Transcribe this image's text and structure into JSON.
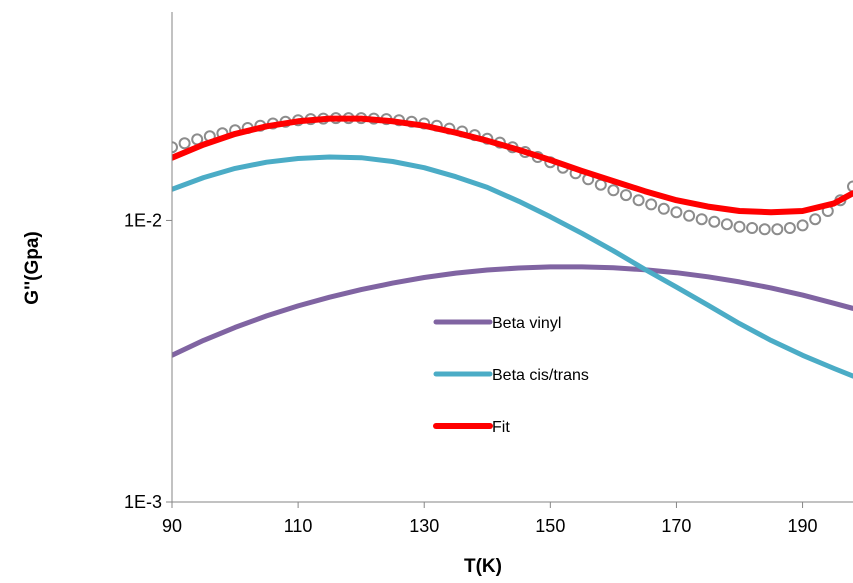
{
  "chart_data": {
    "type": "line",
    "title": "",
    "xlabel": "T(K)",
    "ylabel": "G''(Gpa)",
    "xlim": [
      90,
      198
    ],
    "ylim": [
      0.001,
      0.055
    ],
    "yscale": "log",
    "grid": false,
    "legend_position": "center",
    "x_ticks": [
      90,
      110,
      130,
      150,
      170,
      190
    ],
    "x_tick_labels": [
      "90",
      "110",
      "130",
      "150",
      "170",
      "190"
    ],
    "y_ticks": [
      0.001,
      0.01
    ],
    "y_tick_labels": [
      "1E-3",
      "1E-2"
    ],
    "scatter": {
      "color": "#8c8c8c",
      "points": [
        [
          90,
          0.0182
        ],
        [
          92,
          0.0188
        ],
        [
          94,
          0.0194
        ],
        [
          96,
          0.0199
        ],
        [
          98,
          0.0204
        ],
        [
          100,
          0.0209
        ],
        [
          102,
          0.0213
        ],
        [
          104,
          0.0217
        ],
        [
          106,
          0.0221
        ],
        [
          108,
          0.0224
        ],
        [
          110,
          0.0227
        ],
        [
          112,
          0.0229
        ],
        [
          114,
          0.023
        ],
        [
          116,
          0.0231
        ],
        [
          118,
          0.0231
        ],
        [
          120,
          0.0231
        ],
        [
          122,
          0.023
        ],
        [
          124,
          0.0229
        ],
        [
          126,
          0.0227
        ],
        [
          128,
          0.0224
        ],
        [
          130,
          0.0221
        ],
        [
          132,
          0.0217
        ],
        [
          134,
          0.0212
        ],
        [
          136,
          0.0207
        ],
        [
          138,
          0.0201
        ],
        [
          140,
          0.0195
        ],
        [
          142,
          0.0189
        ],
        [
          144,
          0.0182
        ],
        [
          146,
          0.0175
        ],
        [
          148,
          0.0168
        ],
        [
          150,
          0.0161
        ],
        [
          152,
          0.0154
        ],
        [
          154,
          0.0147
        ],
        [
          156,
          0.014
        ],
        [
          158,
          0.0134
        ],
        [
          160,
          0.0128
        ],
        [
          162,
          0.0123
        ],
        [
          164,
          0.0118
        ],
        [
          166,
          0.0114
        ],
        [
          168,
          0.011
        ],
        [
          170,
          0.0107
        ],
        [
          172,
          0.0104
        ],
        [
          174,
          0.0101
        ],
        [
          176,
          0.0099
        ],
        [
          178,
          0.0097
        ],
        [
          180,
          0.0095
        ],
        [
          182,
          0.0094
        ],
        [
          184,
          0.0093
        ],
        [
          186,
          0.0093
        ],
        [
          188,
          0.0094
        ],
        [
          190,
          0.0096
        ],
        [
          192,
          0.0101
        ],
        [
          194,
          0.0108
        ],
        [
          196,
          0.0118
        ],
        [
          198,
          0.0132
        ]
      ]
    },
    "series": [
      {
        "name": "Beta vinyl",
        "color": "#8064a2",
        "x": [
          90,
          95,
          100,
          105,
          110,
          115,
          120,
          125,
          130,
          135,
          140,
          145,
          150,
          155,
          160,
          165,
          170,
          175,
          180,
          185,
          190,
          195,
          198
        ],
        "y": [
          0.00332,
          0.00375,
          0.00417,
          0.00458,
          0.00497,
          0.00534,
          0.00568,
          0.00599,
          0.00627,
          0.0065,
          0.00667,
          0.00678,
          0.00684,
          0.00684,
          0.00679,
          0.00668,
          0.00652,
          0.00631,
          0.00605,
          0.00576,
          0.00543,
          0.00508,
          0.00487
        ]
      },
      {
        "name": "Beta cis/trans",
        "color": "#4bacc6",
        "x": [
          90,
          95,
          100,
          105,
          110,
          115,
          120,
          125,
          130,
          135,
          140,
          145,
          150,
          155,
          160,
          165,
          170,
          175,
          180,
          185,
          190,
          195,
          198
        ],
        "y": [
          0.0129,
          0.0142,
          0.0153,
          0.0161,
          0.0166,
          0.0168,
          0.0167,
          0.0162,
          0.0154,
          0.0143,
          0.0131,
          0.0117,
          0.0103,
          0.009,
          0.0078,
          0.0067,
          0.0058,
          0.005,
          0.0043,
          0.00375,
          0.00332,
          0.00298,
          0.0028
        ]
      },
      {
        "name": "Fit",
        "color": "#ff0000",
        "x": [
          90,
          95,
          100,
          105,
          110,
          115,
          120,
          125,
          130,
          135,
          140,
          145,
          150,
          155,
          160,
          165,
          170,
          175,
          180,
          185,
          190,
          195,
          198
        ],
        "y": [
          0.0167,
          0.0186,
          0.0203,
          0.0216,
          0.0225,
          0.023,
          0.023,
          0.0225,
          0.0217,
          0.0205,
          0.0192,
          0.0178,
          0.0164,
          0.015,
          0.0138,
          0.0127,
          0.0118,
          0.0112,
          0.0108,
          0.0107,
          0.0108,
          0.0115,
          0.0125
        ]
      }
    ]
  },
  "colors": {
    "axis": "#868686",
    "background": "#ffffff"
  }
}
